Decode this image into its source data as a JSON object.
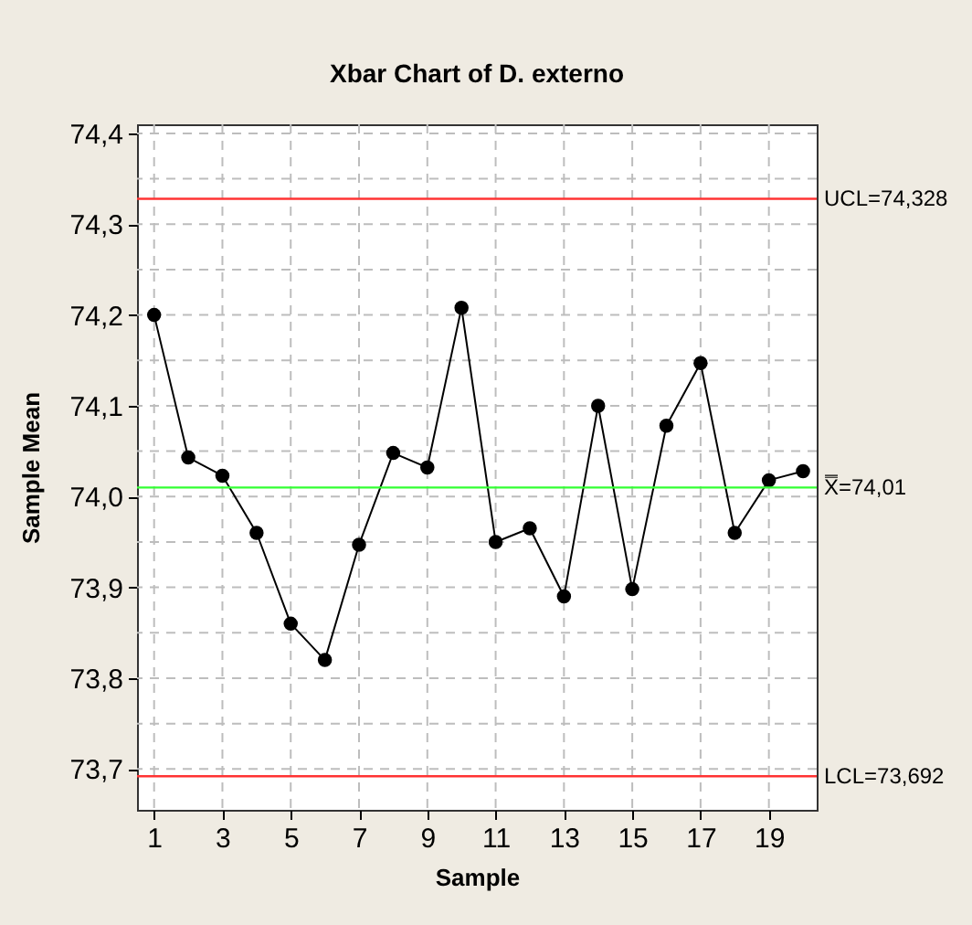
{
  "chart_data": {
    "type": "line",
    "title": "Xbar Chart of D. externo",
    "xlabel": "Sample",
    "ylabel": "Sample Mean",
    "x": [
      1,
      2,
      3,
      4,
      5,
      6,
      7,
      8,
      9,
      10,
      11,
      12,
      13,
      14,
      15,
      16,
      17,
      18,
      19,
      20
    ],
    "series": [
      {
        "color": "#000000",
        "values": [
          74.2,
          74.043,
          74.023,
          73.96,
          73.86,
          73.82,
          73.947,
          74.048,
          74.032,
          74.208,
          73.95,
          73.965,
          73.89,
          74.1,
          73.898,
          74.078,
          74.147,
          73.96,
          74.018,
          74.028
        ]
      }
    ],
    "xlim": [
      0.5,
      20.4
    ],
    "xticks": [
      1,
      3,
      5,
      7,
      9,
      11,
      13,
      15,
      17,
      19
    ],
    "ylim": [
      73.655,
      74.41
    ],
    "yticks": [
      {
        "value": 73.7,
        "label": "73,7"
      },
      {
        "value": 73.75,
        "label": null
      },
      {
        "value": 73.8,
        "label": "73,8"
      },
      {
        "value": 73.85,
        "label": null
      },
      {
        "value": 73.9,
        "label": "73,9"
      },
      {
        "value": 73.95,
        "label": null
      },
      {
        "value": 74.0,
        "label": "74,0"
      },
      {
        "value": 74.05,
        "label": null
      },
      {
        "value": 74.1,
        "label": "74,1"
      },
      {
        "value": 74.15,
        "label": null
      },
      {
        "value": 74.2,
        "label": "74,2"
      },
      {
        "value": 74.25,
        "label": null
      },
      {
        "value": 74.3,
        "label": "74,3"
      },
      {
        "value": 74.35,
        "label": null
      },
      {
        "value": 74.4,
        "label": "74,4"
      }
    ],
    "ref_lines": [
      {
        "axis": "y",
        "value": 74.328,
        "label": "UCL=74,328",
        "color": "#ff3333"
      },
      {
        "axis": "y",
        "value": 74.01,
        "label": "X̿=74,01",
        "color": "#33ff33"
      },
      {
        "axis": "y",
        "value": 73.692,
        "label": "LCL=73,692",
        "color": "#ff3333"
      }
    ],
    "grid": true,
    "marker": "circle",
    "line_style": "solid"
  }
}
